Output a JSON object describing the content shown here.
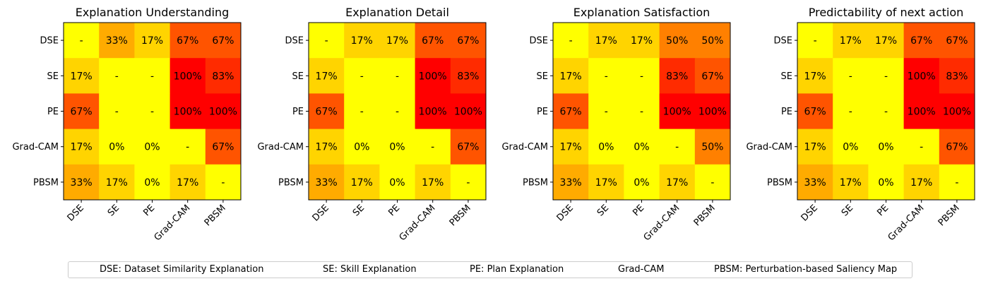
{
  "chart_data": [
    {
      "type": "heatmap",
      "title": "Explanation Understanding",
      "rows": [
        "DSE",
        "SE",
        "PE",
        "Grad-CAM",
        "PBSM"
      ],
      "cols": [
        "DSE",
        "SE",
        "PE",
        "Grad-CAM",
        "PBSM"
      ],
      "values": [
        [
          null,
          33,
          17,
          67,
          67
        ],
        [
          17,
          null,
          null,
          100,
          83
        ],
        [
          67,
          null,
          null,
          100,
          100
        ],
        [
          17,
          0,
          0,
          null,
          67
        ],
        [
          33,
          17,
          0,
          17,
          null
        ]
      ]
    },
    {
      "type": "heatmap",
      "title": "Explanation Detail",
      "rows": [
        "DSE",
        "SE",
        "PE",
        "Grad-CAM",
        "PBSM"
      ],
      "cols": [
        "DSE",
        "SE",
        "PE",
        "Grad-CAM",
        "PBSM"
      ],
      "values": [
        [
          null,
          17,
          17,
          67,
          67
        ],
        [
          17,
          null,
          null,
          100,
          83
        ],
        [
          67,
          null,
          null,
          100,
          100
        ],
        [
          17,
          0,
          0,
          null,
          67
        ],
        [
          33,
          17,
          0,
          17,
          null
        ]
      ]
    },
    {
      "type": "heatmap",
      "title": "Explanation Satisfaction",
      "rows": [
        "DSE",
        "SE",
        "PE",
        "Grad-CAM",
        "PBSM"
      ],
      "cols": [
        "DSE",
        "SE",
        "PE",
        "Grad-CAM",
        "PBSM"
      ],
      "values": [
        [
          null,
          17,
          17,
          50,
          50
        ],
        [
          17,
          null,
          null,
          83,
          67
        ],
        [
          67,
          null,
          null,
          100,
          100
        ],
        [
          17,
          0,
          0,
          null,
          50
        ],
        [
          33,
          17,
          0,
          17,
          null
        ]
      ]
    },
    {
      "type": "heatmap",
      "title": "Predictability of next  action",
      "rows": [
        "DSE",
        "SE",
        "PE",
        "Grad-CAM",
        "PBSM"
      ],
      "cols": [
        "DSE",
        "SE",
        "PE",
        "Grad-CAM",
        "PBSM"
      ],
      "values": [
        [
          null,
          17,
          17,
          67,
          67
        ],
        [
          17,
          null,
          null,
          100,
          83
        ],
        [
          67,
          null,
          null,
          100,
          100
        ],
        [
          17,
          0,
          0,
          null,
          67
        ],
        [
          33,
          17,
          0,
          17,
          null
        ]
      ]
    }
  ],
  "cell_format": {
    "suffix": "%",
    "missing": "-"
  },
  "colormap": {
    "name": "autumn_r",
    "min_color": "#ffff00",
    "max_color": "#ff0000",
    "vmin": 0,
    "vmax": 100
  },
  "legend": {
    "placement": "bottom",
    "items": [
      "DSE: Dataset Similarity Explanation",
      "SE: Skill Explanation",
      "PE: Plan Explanation",
      "Grad-CAM",
      "PBSM: Perturbation-based Saliency Map"
    ]
  }
}
